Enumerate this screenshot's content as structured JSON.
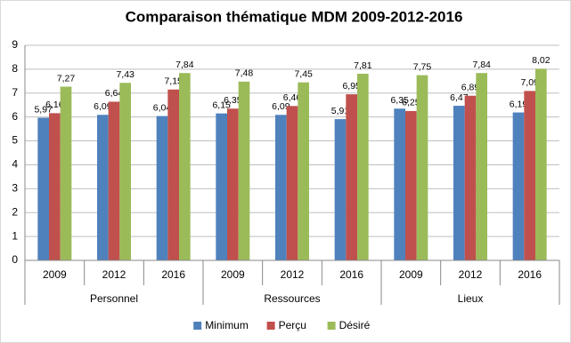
{
  "chart_data": {
    "type": "bar",
    "title": "Comparaison thématique MDM 2009-2012-2016",
    "groups": [
      {
        "name": "Personnel",
        "categories": [
          "2009",
          "2012",
          "2016"
        ]
      },
      {
        "name": "Ressources",
        "categories": [
          "2009",
          "2012",
          "2016"
        ]
      },
      {
        "name": "Lieux",
        "categories": [
          "2009",
          "2012",
          "2016"
        ]
      }
    ],
    "series": [
      {
        "name": "Minimum",
        "color": "#4f81bd",
        "values": [
          5.97,
          6.09,
          6.04,
          6.15,
          6.09,
          5.91,
          6.35,
          6.47,
          6.19
        ],
        "value_labels": [
          "5,97",
          "6,09",
          "6,04",
          "6,15",
          "6,09",
          "5,91",
          "6,35",
          "6,47",
          "6,19"
        ]
      },
      {
        "name": "Perçu",
        "color": "#c0504d",
        "values": [
          6.16,
          6.64,
          7.15,
          6.35,
          6.46,
          6.95,
          6.25,
          6.89,
          7.09
        ],
        "value_labels": [
          "6,16",
          "6,64",
          "7,15",
          "6,35",
          "6,46",
          "6,95",
          "6,25",
          "6,89",
          "7,09"
        ]
      },
      {
        "name": "Désiré",
        "color": "#9bbb59",
        "values": [
          7.27,
          7.43,
          7.84,
          7.48,
          7.45,
          7.81,
          7.75,
          7.84,
          8.02
        ],
        "value_labels": [
          "7,27",
          "7,43",
          "7,84",
          "7,48",
          "7,45",
          "7,81",
          "7,75",
          "7,84",
          "8,02"
        ]
      }
    ],
    "ylim": [
      0,
      9
    ],
    "yticks": [
      0,
      1,
      2,
      3,
      4,
      5,
      6,
      7,
      8,
      9
    ],
    "grid": true,
    "legend": "bottom"
  }
}
